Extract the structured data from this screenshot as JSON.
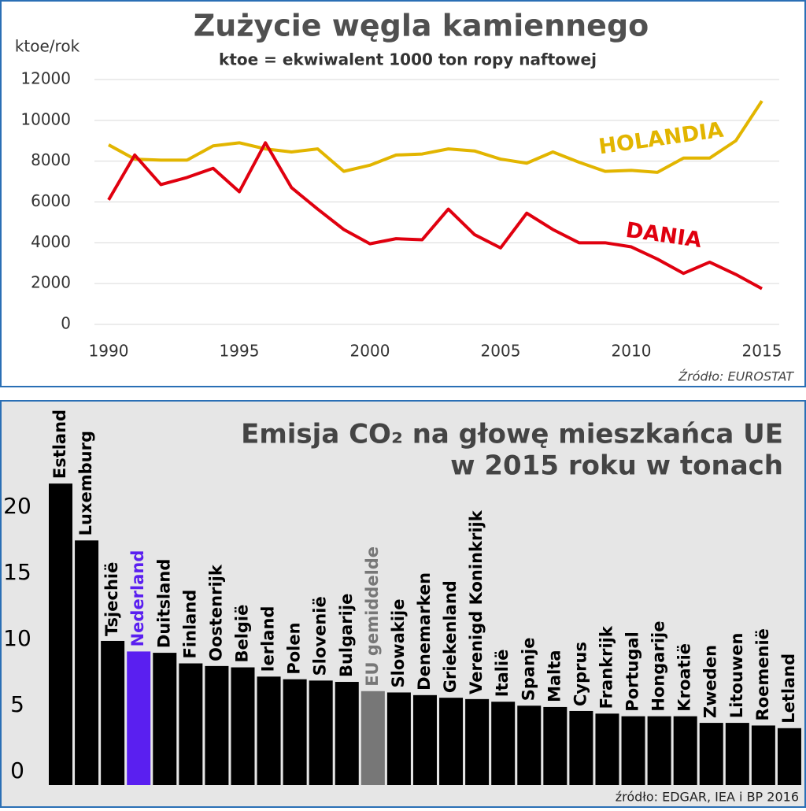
{
  "chart_data": [
    {
      "type": "line",
      "title": "Zużycie węgla kamiennego",
      "subtitle": "ktoe = ekwiwalent 1000 ton ropy naftowej",
      "y_label": "ktoe/rok",
      "source": "Źródło: EUROSTAT",
      "x": [
        1990,
        1991,
        1992,
        1993,
        1994,
        1995,
        1996,
        1997,
        1998,
        1999,
        2000,
        2001,
        2002,
        2003,
        2004,
        2005,
        2006,
        2007,
        2008,
        2009,
        2010,
        2011,
        2012,
        2013,
        2014,
        2015
      ],
      "series": [
        {
          "name": "HOLANDIA",
          "color": "#e2b500",
          "values": [
            8800,
            8100,
            8050,
            8050,
            8750,
            8900,
            8600,
            8450,
            8600,
            7500,
            7800,
            8300,
            8350,
            8600,
            8500,
            8100,
            7900,
            8450,
            7950,
            7500,
            7550,
            7450,
            8150,
            8150,
            9000,
            10950
          ]
        },
        {
          "name": "DANIA",
          "color": "#e0000f",
          "values": [
            6100,
            8300,
            6850,
            7200,
            7650,
            6500,
            8900,
            6700,
            5650,
            4650,
            3950,
            4200,
            4150,
            5650,
            4400,
            3750,
            5450,
            4650,
            4000,
            4000,
            3800,
            3200,
            2500,
            3050,
            2450,
            1750
          ]
        }
      ],
      "xlim": [
        1990,
        2015
      ],
      "xticks": [
        1990,
        1995,
        2000,
        2005,
        2010,
        2015
      ],
      "ylim": [
        0,
        12000
      ],
      "yticks": [
        0,
        2000,
        4000,
        6000,
        8000,
        10000,
        12000
      ],
      "grid": true
    },
    {
      "type": "bar",
      "title": [
        "Emisja CO₂ na głowę mieszkańca UE",
        "w 2015 roku w tonach"
      ],
      "source": "źródło: EDGAR, IEA i BP 2016",
      "categories": [
        "Estland",
        "Luxemburg",
        "Tsjechië",
        "Nederland",
        "Duitsland",
        "Finland",
        "Oostenrijk",
        "België",
        "Ierland",
        "Polen",
        "Slovenië",
        "Bulgarije",
        "EU gemiddelde",
        "Slowakije",
        "Denemarken",
        "Griekenland",
        "Verenigd Koninkrijk",
        "Italië",
        "Spanje",
        "Malta",
        "Cyprus",
        "Frankrijk",
        "Portugal",
        "Hongarije",
        "Kroatië",
        "Zweden",
        "Litouwen",
        "Roemenië",
        "Letland"
      ],
      "values": [
        22.8,
        18.5,
        10.9,
        10.1,
        10.0,
        9.2,
        9.0,
        8.9,
        8.2,
        8.0,
        7.9,
        7.8,
        7.1,
        7.0,
        6.8,
        6.6,
        6.5,
        6.3,
        6.0,
        5.9,
        5.6,
        5.4,
        5.2,
        5.2,
        5.2,
        4.7,
        4.7,
        4.5,
        4.3
      ],
      "colors": [
        "#000000",
        "#000000",
        "#000000",
        "#5a1ff0",
        "#000000",
        "#000000",
        "#000000",
        "#000000",
        "#000000",
        "#000000",
        "#000000",
        "#000000",
        "#777777",
        "#000000",
        "#000000",
        "#000000",
        "#000000",
        "#000000",
        "#000000",
        "#000000",
        "#000000",
        "#000000",
        "#000000",
        "#000000",
        "#000000",
        "#000000",
        "#000000",
        "#000000",
        "#000000"
      ],
      "ylim": [
        0,
        24
      ],
      "yticks": [
        0,
        5,
        10,
        15,
        20
      ]
    }
  ]
}
